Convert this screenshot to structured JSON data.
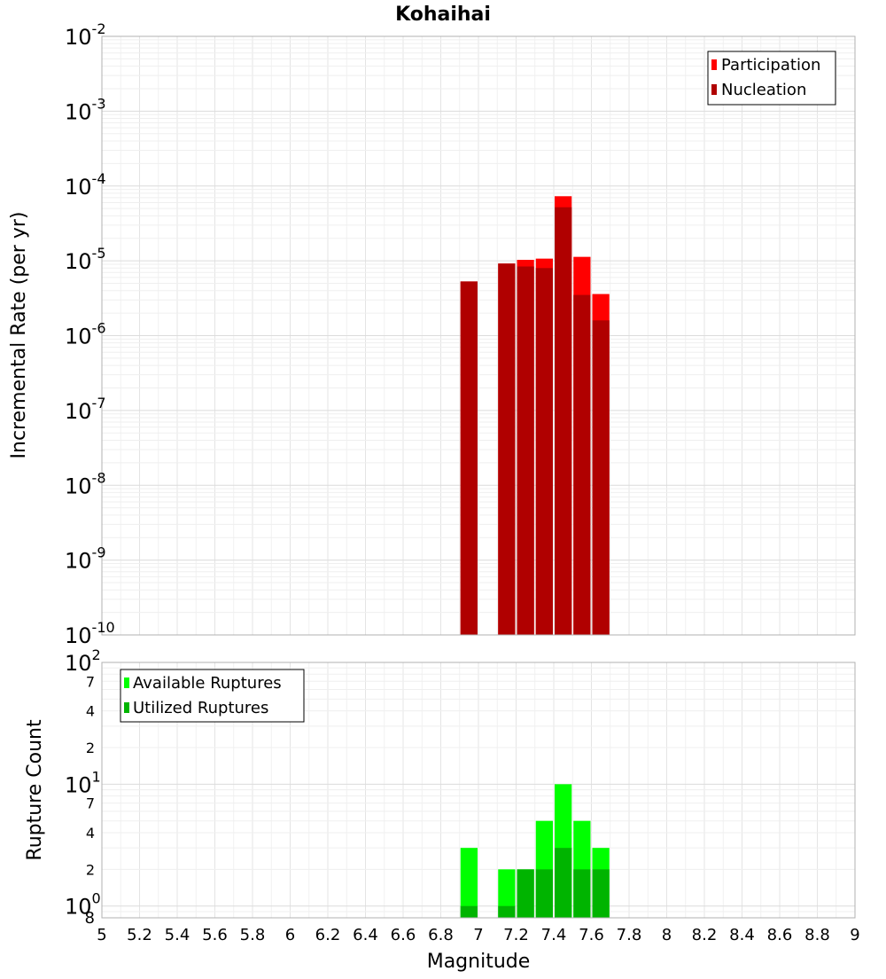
{
  "chart_data": [
    {
      "type": "bar",
      "title": "Kohaihai",
      "xlabel": "",
      "ylabel": "Incremental Rate (per yr)",
      "yscale": "log",
      "ylim": [
        1e-10,
        0.01
      ],
      "xlim": [
        5,
        9
      ],
      "bar_width": 0.1,
      "grid": true,
      "legend_position": "top-right",
      "x": [
        6.95,
        7.15,
        7.25,
        7.35,
        7.45,
        7.55,
        7.65
      ],
      "series": [
        {
          "name": "Participation",
          "color": "#ff0000",
          "values": [
            5.3e-06,
            9.2e-06,
            1.03e-05,
            1.07e-05,
            7.3e-05,
            1.13e-05,
            3.6e-06
          ]
        },
        {
          "name": "Nucleation",
          "color": "#b00000",
          "values": [
            5.3e-06,
            9.2e-06,
            8.4e-06,
            8e-06,
            5.2e-05,
            3.5e-06,
            1.6e-06
          ]
        }
      ],
      "y_ticks": [
        {
          "base": "10",
          "exp": "-2"
        },
        {
          "base": "10",
          "exp": "-3"
        },
        {
          "base": "10",
          "exp": "-4"
        },
        {
          "base": "10",
          "exp": "-5"
        },
        {
          "base": "10",
          "exp": "-6"
        },
        {
          "base": "10",
          "exp": "-7"
        },
        {
          "base": "10",
          "exp": "-8"
        },
        {
          "base": "10",
          "exp": "-9"
        },
        {
          "base": "10",
          "exp": "-10"
        }
      ]
    },
    {
      "type": "bar",
      "title": "",
      "xlabel": "Magnitude",
      "ylabel": "Rupture Count",
      "yscale": "log",
      "ylim": [
        0.8,
        100
      ],
      "xlim": [
        5,
        9
      ],
      "bar_width": 0.1,
      "grid": true,
      "legend_position": "top-left",
      "x": [
        6.95,
        7.15,
        7.25,
        7.35,
        7.45,
        7.55,
        7.65
      ],
      "series": [
        {
          "name": "Available Ruptures",
          "color": "#00ff00",
          "values": [
            3,
            2,
            2,
            5,
            10,
            5,
            3
          ]
        },
        {
          "name": "Utilized Ruptures",
          "color": "#00b400",
          "values": [
            1,
            1,
            2,
            2,
            3,
            2,
            2
          ]
        }
      ],
      "y_ticks": [
        {
          "base": "10",
          "exp": "2"
        },
        {
          "base": "10",
          "exp": "1"
        },
        {
          "base": "10",
          "exp": "0"
        }
      ],
      "y_minor_labels": [
        "7",
        "4",
        "2",
        "7",
        "4",
        "2"
      ],
      "y_min_label": "8",
      "x_ticks": [
        "5",
        "5.2",
        "5.4",
        "5.6",
        "5.8",
        "6",
        "6.2",
        "6.4",
        "6.6",
        "6.8",
        "7",
        "7.2",
        "7.4",
        "7.6",
        "7.8",
        "8",
        "8.2",
        "8.4",
        "8.6",
        "8.8",
        "9"
      ]
    }
  ]
}
